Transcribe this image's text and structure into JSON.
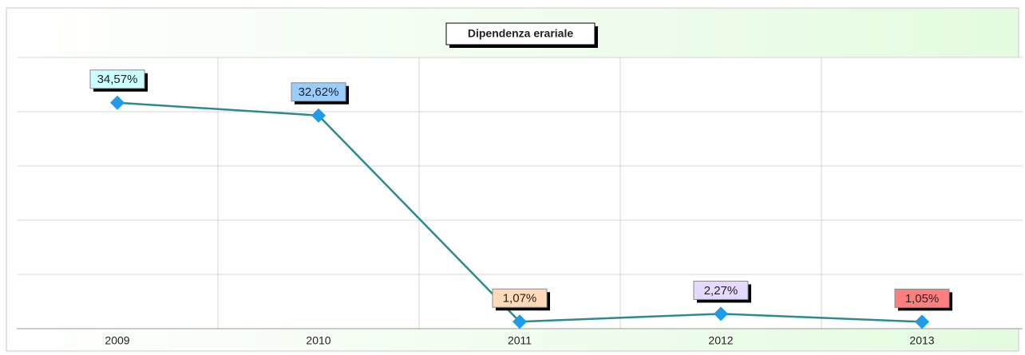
{
  "chart_data": {
    "type": "line",
    "title": "Dipendenza erariale",
    "categories": [
      "2009",
      "2010",
      "2011",
      "2012",
      "2013"
    ],
    "series": [
      {
        "color": "#2e8b8b",
        "marker_color": "#1e9be9",
        "values": [
          34.57,
          32.62,
          1.07,
          2.27,
          1.05
        ],
        "value_labels": [
          "34,57%",
          "32,62%",
          "1,07%",
          "2,27%",
          "1,05%"
        ],
        "label_colors": [
          "#ccffff",
          "#99ccff",
          "#ffdab9",
          "#e6d9ff",
          "#ff7f7f"
        ]
      }
    ],
    "ylim": [
      0,
      41.5
    ],
    "grid": true
  }
}
